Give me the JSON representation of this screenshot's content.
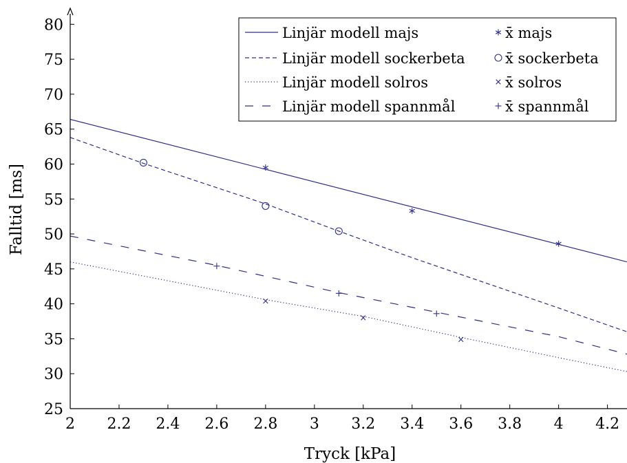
{
  "chart_data": {
    "type": "line",
    "title": "",
    "xlabel": "Tryck [kPa]",
    "ylabel": "Falltid [ms]",
    "xlim": [
      2,
      4.28
    ],
    "ylim": [
      25,
      82
    ],
    "x_ticks": [
      "2",
      "2.2",
      "2.4",
      "2.6",
      "2.8",
      "3",
      "3.2",
      "3.4",
      "3.6",
      "3.8",
      "4",
      "4.2"
    ],
    "y_ticks": [
      "25",
      "30",
      "35",
      "40",
      "45",
      "50",
      "55",
      "60",
      "65",
      "70",
      "75",
      "80"
    ],
    "color": "#2e2e8c",
    "legend_position": "top-right",
    "lines": [
      {
        "name": "Linjär modell majs",
        "style": "solid",
        "x": [
          2,
          4.28
        ],
        "y": [
          66.4,
          46.0
        ]
      },
      {
        "name": "Linjär modell sockerbeta",
        "style": "dashed",
        "x": [
          2,
          2.3,
          2.8,
          3.1,
          3.4,
          3.7,
          4.0,
          4.28
        ],
        "y": [
          63.8,
          60.1,
          54.3,
          50.4,
          46.6,
          43.0,
          39.4,
          36.0
        ]
      },
      {
        "name": "Linjär modell solros",
        "style": "dotted",
        "x": [
          2,
          2.8,
          3.2,
          3.6,
          4.0,
          4.28
        ],
        "y": [
          46.0,
          40.6,
          38.2,
          35.2,
          32.3,
          30.3
        ]
      },
      {
        "name": "Linjär modell spannmål",
        "style": "loosely-dashed",
        "x": [
          2,
          2.6,
          3.1,
          3.5,
          4.0,
          4.28
        ],
        "y": [
          49.7,
          45.5,
          41.6,
          38.8,
          35.3,
          32.8
        ]
      }
    ],
    "points": [
      {
        "name": "x̄ majs",
        "marker": "asterisk",
        "x": [
          2.8,
          3.4,
          4.0
        ],
        "y": [
          59.5,
          53.3,
          48.6
        ]
      },
      {
        "name": "x̄ sockerbeta",
        "marker": "circle",
        "x": [
          2.3,
          2.8,
          3.1
        ],
        "y": [
          60.2,
          54.0,
          50.4
        ]
      },
      {
        "name": "x̄ solros",
        "marker": "cross",
        "x": [
          2.8,
          3.2,
          3.6
        ],
        "y": [
          40.4,
          38.0,
          34.9
        ]
      },
      {
        "name": "x̄ spannmål",
        "marker": "plus",
        "x": [
          2.6,
          3.1,
          3.5
        ],
        "y": [
          45.4,
          41.5,
          38.6
        ]
      }
    ]
  }
}
